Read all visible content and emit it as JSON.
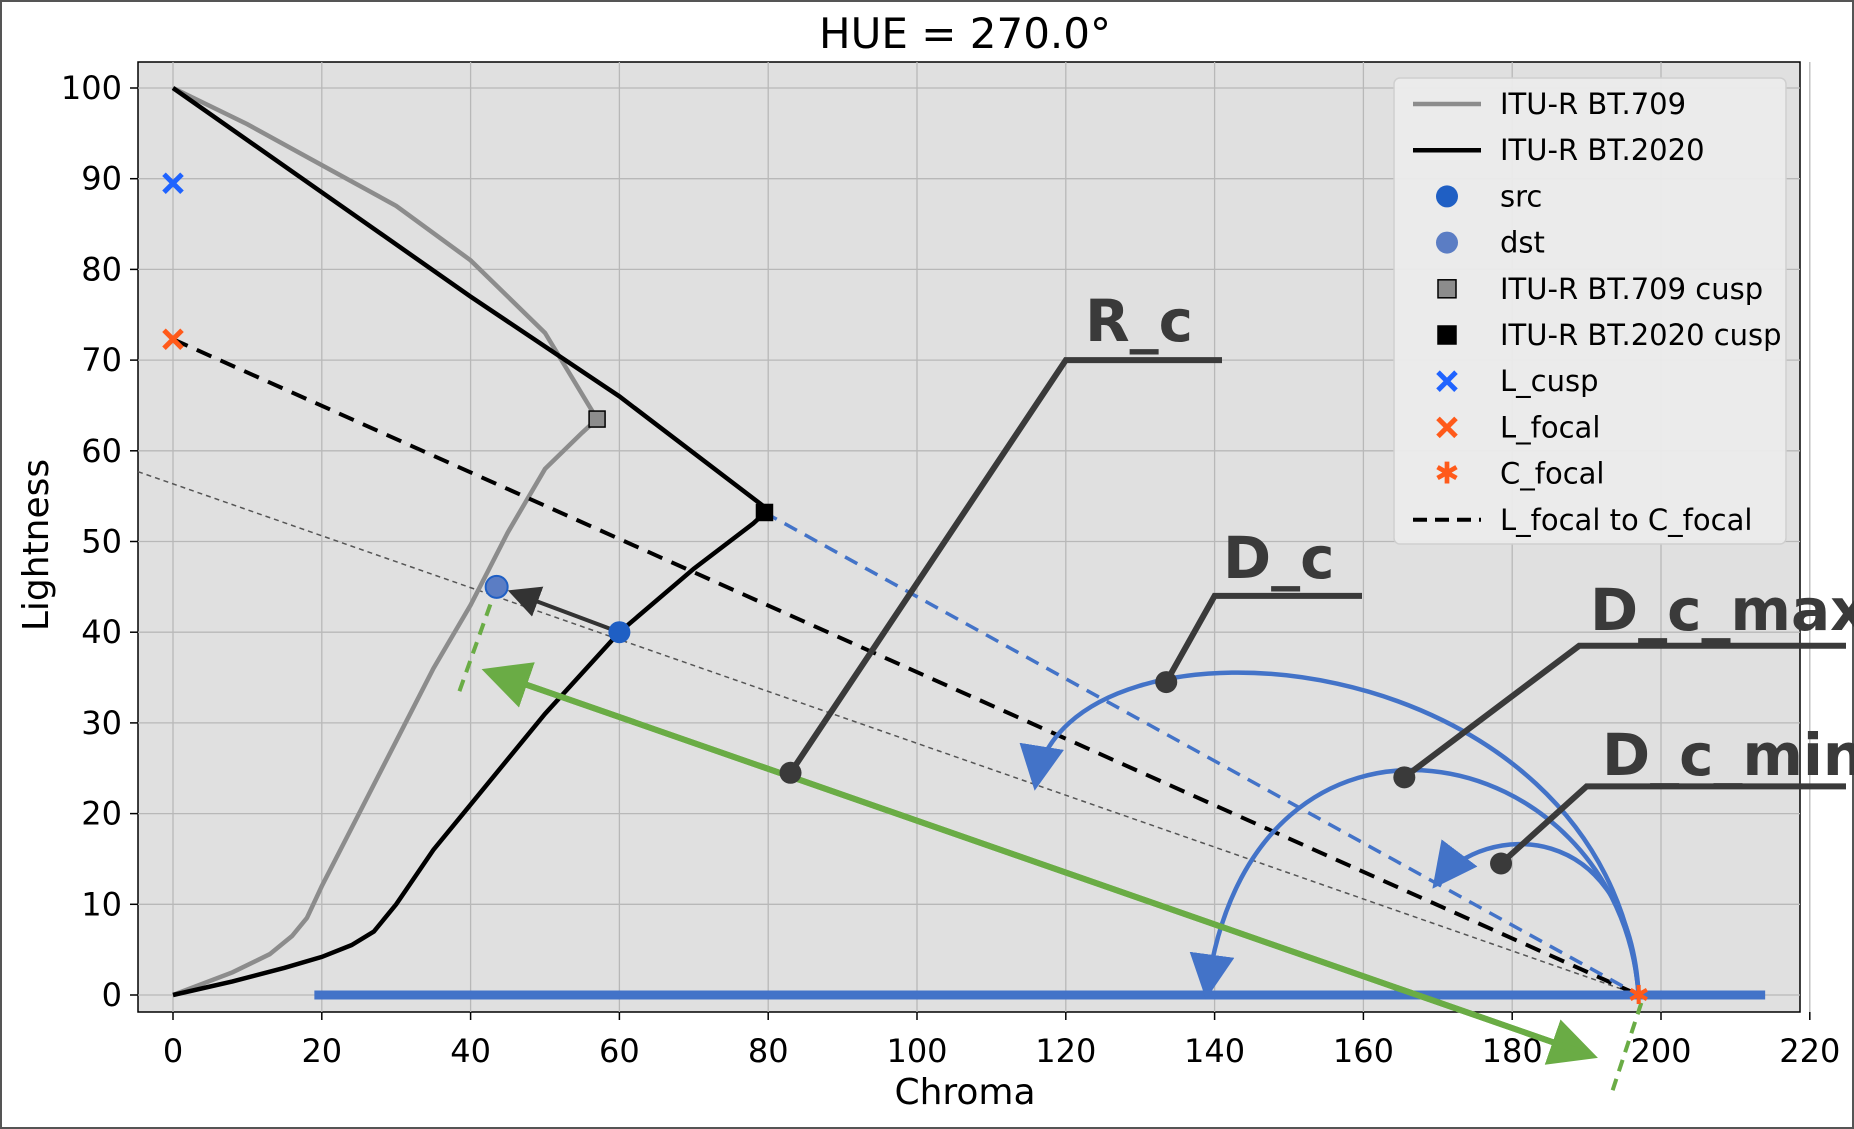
{
  "chart_data": {
    "type": "line",
    "title": "HUE = 270.0°",
    "xlabel": "Chroma",
    "ylabel": "Lightness",
    "xlim": [
      -5,
      220
    ],
    "ylim": [
      -3,
      103
    ],
    "xticks": [
      0,
      20,
      40,
      60,
      80,
      100,
      120,
      140,
      160,
      180,
      200,
      220
    ],
    "yticks": [
      0,
      10,
      20,
      30,
      40,
      50,
      60,
      70,
      80,
      90,
      100
    ],
    "grid": true,
    "legend_position": "top-right",
    "colors": {
      "bt709": "#8c8c8c",
      "bt2020": "#000000",
      "point_blue": "#1f5fc4",
      "cross_blue": "#1f63ff",
      "orange": "#ff5a1a",
      "arc_blue": "#4373c8",
      "green": "#6aac45",
      "dark": "#3a3a3a",
      "plot_bg": "#e0e0e0"
    },
    "series": [
      {
        "name": "ITU-R BT.709",
        "style": "solid",
        "color": "#8c8c8c",
        "points": [
          [
            0,
            0
          ],
          [
            8,
            2.5
          ],
          [
            13,
            4.5
          ],
          [
            16,
            6.5
          ],
          [
            18,
            8.5
          ],
          [
            20,
            12
          ],
          [
            25,
            20
          ],
          [
            30,
            28
          ],
          [
            35,
            36
          ],
          [
            40,
            43
          ],
          [
            45,
            51
          ],
          [
            50,
            58
          ],
          [
            55,
            62
          ],
          [
            57,
            63.5
          ],
          [
            50,
            73
          ],
          [
            40,
            81
          ],
          [
            30,
            87
          ],
          [
            20,
            91.5
          ],
          [
            10,
            96
          ],
          [
            0,
            100
          ]
        ]
      },
      {
        "name": "ITU-R BT.2020",
        "style": "solid",
        "color": "#000000",
        "points": [
          [
            0,
            0
          ],
          [
            8,
            1.5
          ],
          [
            15,
            3
          ],
          [
            20,
            4.2
          ],
          [
            24,
            5.5
          ],
          [
            27,
            7
          ],
          [
            30,
            10
          ],
          [
            35,
            16
          ],
          [
            40,
            21
          ],
          [
            50,
            31
          ],
          [
            60,
            40
          ],
          [
            70,
            47
          ],
          [
            78,
            52
          ],
          [
            80,
            53.5
          ],
          [
            60,
            66
          ],
          [
            40,
            77
          ],
          [
            20,
            88.5
          ],
          [
            0,
            100
          ]
        ]
      },
      {
        "name": "L_focal to C_focal",
        "style": "dashed",
        "color": "#000000",
        "points": [
          [
            0,
            72.3
          ],
          [
            197,
            0
          ]
        ]
      }
    ],
    "markers": {
      "src": [
        60,
        40
      ],
      "dst": [
        43.5,
        45
      ],
      "bt709_cusp": [
        57,
        63.5
      ],
      "bt2020_cusp": [
        79.5,
        53.2
      ],
      "L_cusp": [
        0,
        89.5
      ],
      "L_focal": [
        0,
        72.3
      ],
      "C_focal": [
        197,
        0
      ]
    },
    "legend": [
      {
        "label": "ITU-R BT.709",
        "kind": "line",
        "color": "#8c8c8c"
      },
      {
        "label": "ITU-R BT.2020",
        "kind": "line",
        "color": "#000000"
      },
      {
        "label": "src",
        "kind": "circle",
        "color": "#1f5fc4"
      },
      {
        "label": "dst",
        "kind": "circle",
        "color": "#5b7dc4"
      },
      {
        "label": "ITU-R BT.709 cusp",
        "kind": "square",
        "color": "#8c8c8c"
      },
      {
        "label": "ITU-R BT.2020 cusp",
        "kind": "square",
        "color": "#000000"
      },
      {
        "label": "L_cusp",
        "kind": "cross",
        "color": "#1f63ff"
      },
      {
        "label": "L_focal",
        "kind": "cross",
        "color": "#ff5a1a"
      },
      {
        "label": "C_focal",
        "kind": "star",
        "color": "#ff5a1a"
      },
      {
        "label": "L_focal to C_focal",
        "kind": "dashed",
        "color": "#000000"
      }
    ],
    "annotations": [
      {
        "text": "R_c",
        "anchor": [
          83,
          24.5
        ]
      },
      {
        "text": "D_c",
        "anchor": [
          133.5,
          34.5
        ]
      },
      {
        "text": "D_c_max",
        "anchor": [
          165.5,
          24
        ]
      },
      {
        "text": "D_c_min",
        "anchor": [
          178.5,
          14.5
        ]
      }
    ]
  }
}
